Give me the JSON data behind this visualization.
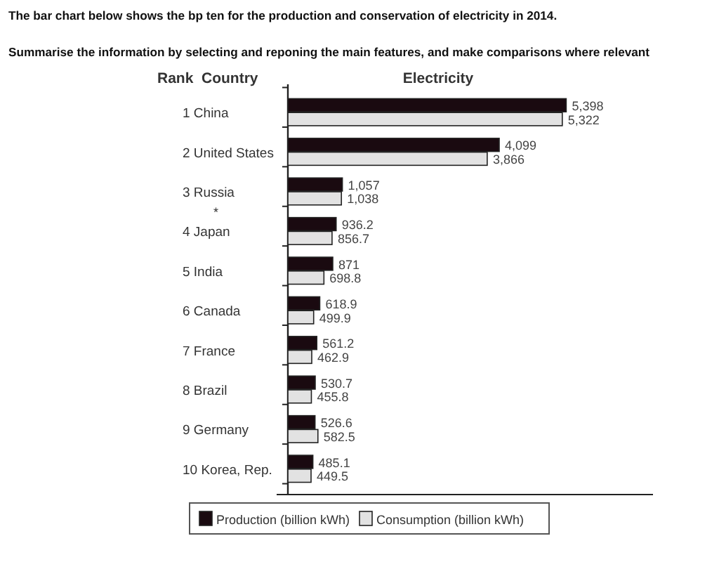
{
  "chart_data": {
    "type": "bar",
    "orientation": "horizontal",
    "title": "The bar chart below shows the bp ten for the production and conservation of electricity in 2014.",
    "subtitle": "Summarise the information by selecting and reponing the main features, and make comparisons where relevant",
    "ylabel": "Rank  Country",
    "xlabel": "Electricity",
    "categories": [
      "1 China",
      "2 United States",
      "3 Russia",
      "4 Japan",
      "5 India",
      "6 Canada",
      "7 France",
      "8 Brazil",
      "9 Germany",
      "10 Korea, Rep."
    ],
    "series": [
      {
        "name": "Production (billion kWh)",
        "color": "#1a0a10",
        "values": [
          5398,
          4099,
          1057,
          936.2,
          871,
          618.9,
          561.2,
          530.7,
          526.6,
          485.1
        ],
        "value_labels": [
          "5,398",
          "4,099",
          "1,057",
          "936.2",
          "871",
          "618.9",
          "561.2",
          "530.7",
          "526.6",
          "485.1"
        ]
      },
      {
        "name": "Consumption (billion kWh)",
        "color": "#e2e2e2",
        "values": [
          5322,
          3866,
          1038,
          856.7,
          698.8,
          499.9,
          462.9,
          455.8,
          582.5,
          449.5
        ],
        "value_labels": [
          "5,322",
          "3,866",
          "1,038",
          "856.7",
          "698.8",
          "499.9",
          "462.9",
          "455.8",
          "582.5",
          "449.5"
        ]
      }
    ],
    "annotations": [
      "*"
    ],
    "legend": "bottom",
    "tick_labels": "y",
    "grid": false
  }
}
